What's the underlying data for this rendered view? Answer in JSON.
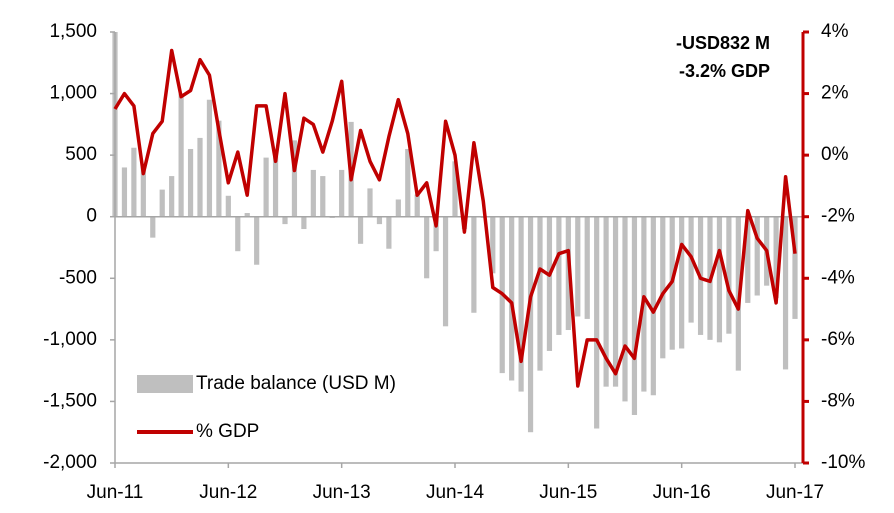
{
  "chart_data": {
    "type": "bar_line",
    "categories": [
      "Jun-11",
      null,
      null,
      null,
      null,
      null,
      null,
      null,
      null,
      null,
      null,
      null,
      "Jun-12",
      null,
      null,
      null,
      null,
      null,
      null,
      null,
      null,
      null,
      null,
      null,
      "Jun-13",
      null,
      null,
      null,
      null,
      null,
      null,
      null,
      null,
      null,
      null,
      null,
      "Jun-14",
      null,
      null,
      null,
      null,
      null,
      null,
      null,
      null,
      null,
      null,
      null,
      "Jun-15",
      null,
      null,
      null,
      null,
      null,
      null,
      null,
      null,
      null,
      null,
      null,
      "Jun-16",
      null,
      null,
      null,
      null,
      null,
      null,
      null,
      null,
      null,
      null,
      null,
      "Jun-17"
    ],
    "series": [
      {
        "name": "Trade balance (USD M)",
        "color": "#bfbfbf",
        "type": "bar",
        "values": [
          1500,
          400,
          560,
          420,
          -170,
          220,
          330,
          1000,
          550,
          640,
          950,
          780,
          170,
          -280,
          30,
          -390,
          480,
          490,
          -60,
          620,
          -100,
          380,
          330,
          -10,
          380,
          770,
          -220,
          230,
          -60,
          -260,
          140,
          550,
          180,
          -500,
          -280,
          -890,
          450,
          -100,
          -780,
          -10,
          -460,
          -1270,
          -1330,
          -1420,
          -1750,
          -1250,
          -1090,
          -960,
          -920,
          -810,
          -830,
          -1720,
          -1380,
          -1380,
          -1500,
          -1610,
          -1420,
          -1450,
          -1150,
          -1080,
          -1070,
          -860,
          -960,
          -1000,
          -1020,
          -950,
          -1250,
          -700,
          -640,
          -560,
          -660,
          -1240,
          -830
        ]
      },
      {
        "name": "% GDP",
        "color": "#c00000",
        "type": "line",
        "axis": "y2",
        "values": [
          1.5,
          2.0,
          1.6,
          -0.6,
          0.7,
          1.1,
          3.4,
          1.9,
          2.1,
          3.1,
          2.6,
          0.8,
          -0.9,
          0.1,
          -1.3,
          1.6,
          1.6,
          -0.2,
          2.0,
          -0.5,
          1.2,
          1.0,
          0.1,
          1.1,
          2.4,
          -0.8,
          0.8,
          -0.2,
          -0.8,
          0.6,
          1.8,
          0.7,
          -1.3,
          -0.9,
          -2.3,
          1.1,
          0.0,
          -2.5,
          0.4,
          -1.5,
          -4.3,
          -4.5,
          -4.8,
          -6.7,
          -4.6,
          -3.7,
          -3.9,
          -3.2,
          -3.1,
          -7.5,
          -6.0,
          -6.0,
          -6.6,
          -7.1,
          -6.2,
          -6.6,
          -4.6,
          -5.1,
          -4.5,
          -4.1,
          -2.9,
          -3.3,
          -4.0,
          -4.1,
          -3.1,
          -4.4,
          -5.0,
          -1.8,
          -2.7,
          -3.1,
          -4.8,
          -0.7,
          -3.2
        ]
      }
    ],
    "ylim": [
      -2000,
      1500
    ],
    "yticks": [
      {
        "value": 1500,
        "label": "1,500"
      },
      {
        "value": 1000,
        "label": "1,000"
      },
      500,
      0,
      -500,
      {
        "value": -1000,
        "label": "-1,000"
      },
      {
        "value": -1500,
        "label": "-1,500"
      },
      {
        "value": -2000,
        "label": "-2,000"
      }
    ],
    "y2lim": [
      -10,
      4
    ],
    "y2ticks": [
      {
        "value": 4,
        "label": "4%"
      },
      {
        "value": 2,
        "label": "2%"
      },
      {
        "value": 0,
        "label": "0%"
      },
      {
        "value": -2,
        "label": "-2%"
      },
      {
        "value": -4,
        "label": "-4%"
      },
      {
        "value": -6,
        "label": "-6%"
      },
      {
        "value": -8,
        "label": "-8%"
      },
      {
        "value": -10,
        "label": "-10%"
      }
    ],
    "annotations": [
      "-USD832 M",
      "-3.2% GDP"
    ],
    "legend": "lower left",
    "grid": false
  }
}
